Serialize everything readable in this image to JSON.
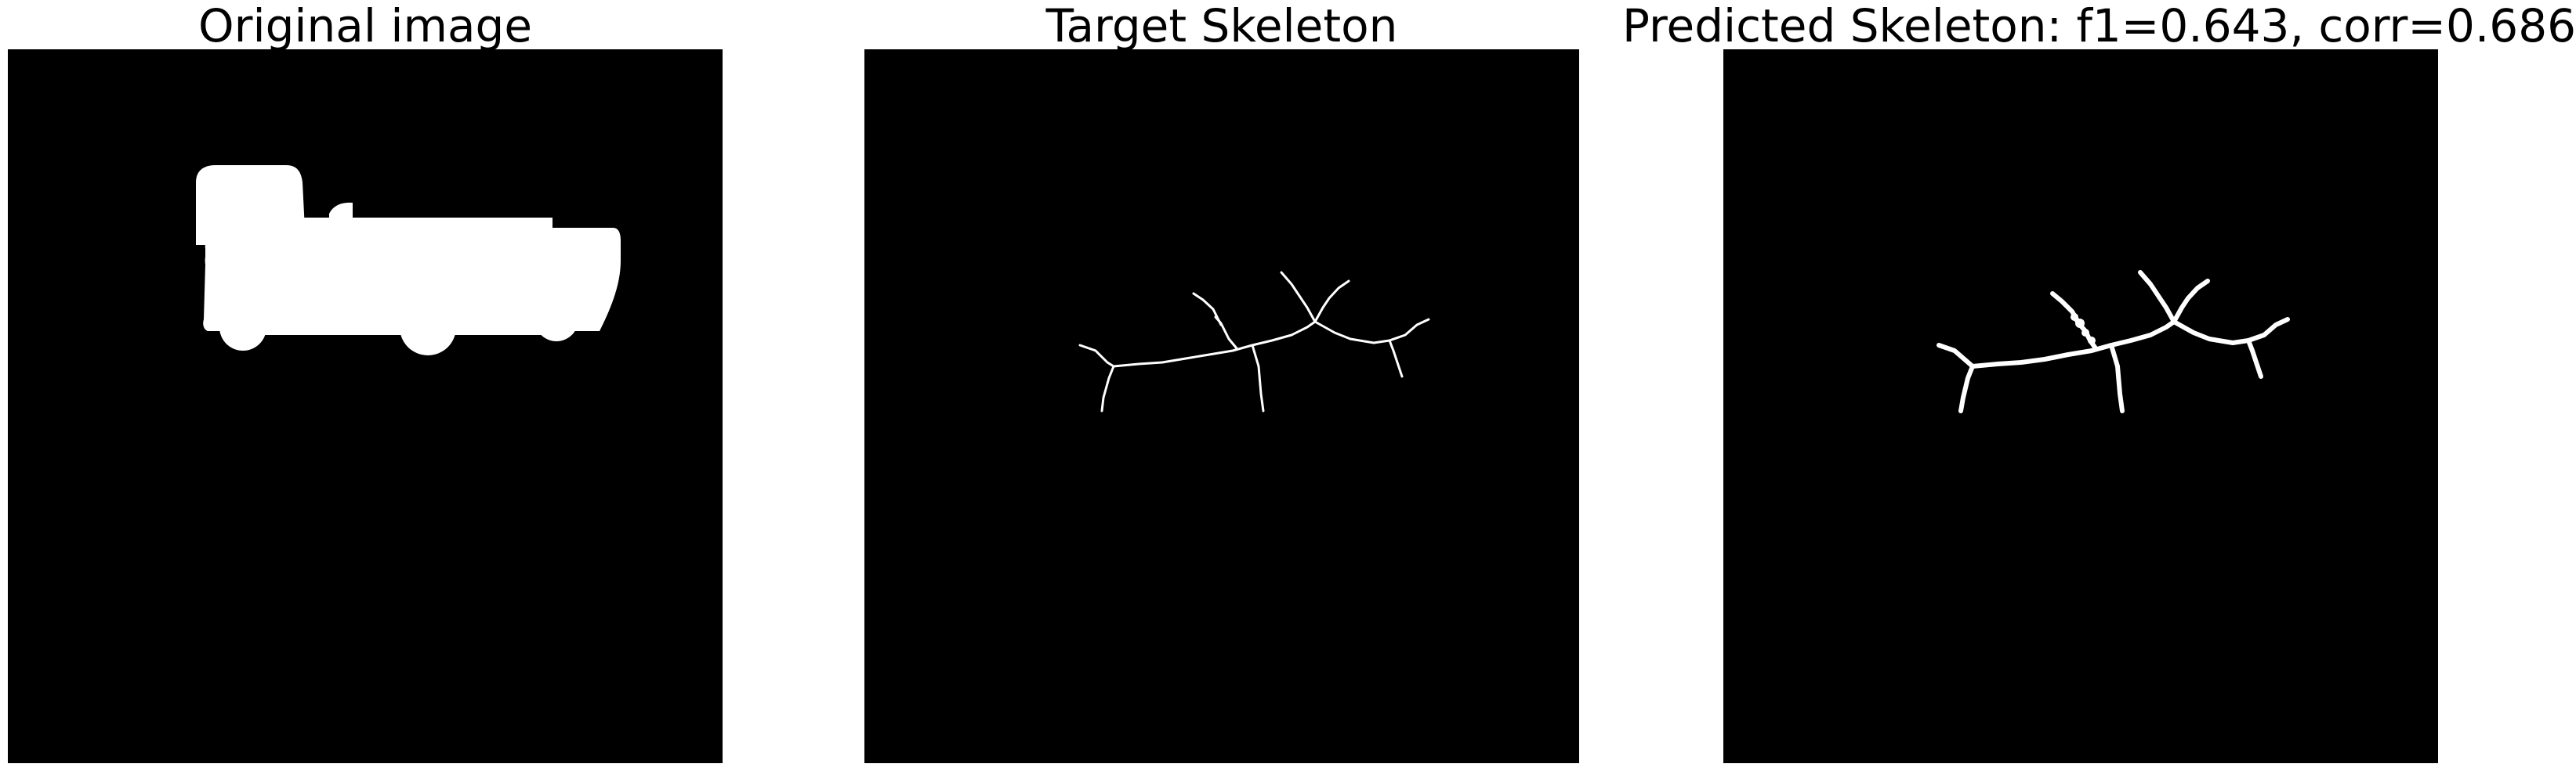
{
  "figure": {
    "panels": [
      {
        "title": "Original image"
      },
      {
        "title": "Target Skeleton"
      },
      {
        "title": "Predicted Skeleton: f1=0.643, corr=0.686"
      }
    ]
  },
  "colors": {
    "background": "#000000",
    "foreground": "#ffffff",
    "page": "#ffffff"
  }
}
